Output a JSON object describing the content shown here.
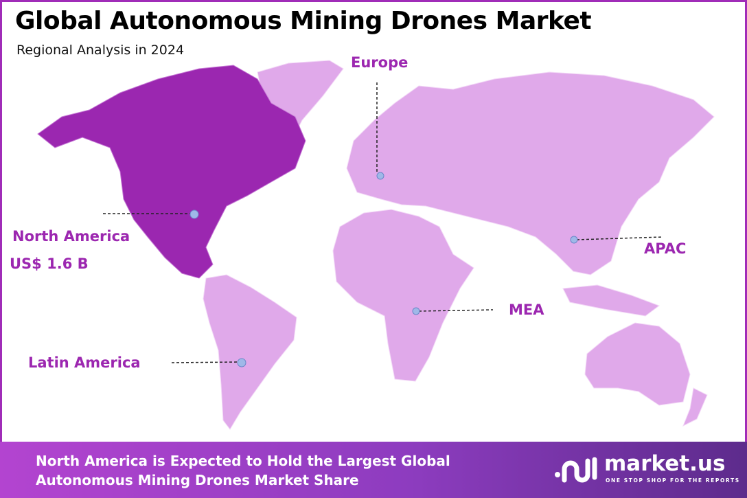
{
  "header": {
    "title": "Global Autonomous Mining Drones Market",
    "subtitle": "Regional Analysis in 2024"
  },
  "colors": {
    "highlight_region": "#9b27b0",
    "other_regions": "#e0a9ea",
    "label": "#9c27b0",
    "marker": "#9fb8e8"
  },
  "regions": [
    {
      "name": "North America",
      "value": "US$ 1.6 B",
      "highlighted": true
    },
    {
      "name": "Europe"
    },
    {
      "name": "APAC"
    },
    {
      "name": "MEA"
    },
    {
      "name": "Latin America"
    }
  ],
  "footer": {
    "line1": "North America is Expected to Hold the Largest Global",
    "line2": "Autonomous Mining Drones  Market Share"
  },
  "logo": {
    "name": "market.us",
    "tagline": "ONE STOP SHOP FOR THE REPORTS"
  }
}
